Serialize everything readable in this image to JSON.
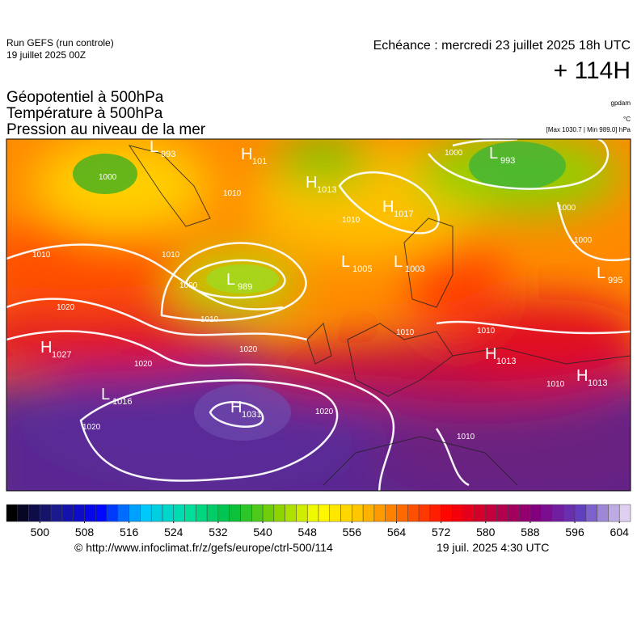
{
  "header": {
    "run": "Run GEFS (run controle)",
    "run_date": "19 juillet 2025 00Z",
    "valid": "Echéance : mercredi 23 juillet 2025 18h UTC",
    "lead": "+ 114H",
    "titles": [
      "Géopotentiel à 500hPa",
      "Température à 500hPa",
      "Pression au niveau de la mer"
    ],
    "units": [
      "gpdam",
      "°C"
    ],
    "extremes": "[Max 1030.7 | Min 989.0] hPa"
  },
  "map": {
    "centers": [
      {
        "type": "L",
        "value": 993
      },
      {
        "type": "H",
        "value": 101
      },
      {
        "type": "H",
        "value": 1013
      },
      {
        "type": "H",
        "value": 1017
      },
      {
        "type": "L",
        "value": 993
      },
      {
        "type": "L",
        "value": 1005
      },
      {
        "type": "L",
        "value": 1003
      },
      {
        "type": "L",
        "value": 989
      },
      {
        "type": "L",
        "value": 995
      },
      {
        "type": "H",
        "value": 1027
      },
      {
        "type": "H",
        "value": 1013
      },
      {
        "type": "H",
        "value": 1013
      },
      {
        "type": "L",
        "value": 1016
      },
      {
        "type": "H",
        "value": 1031
      }
    ],
    "isobar_labels": [
      1000,
      1010,
      1010,
      1000,
      1000,
      1000,
      1010,
      1010,
      1000,
      1010,
      1020,
      1020,
      1020,
      1020,
      1020,
      1010,
      1010,
      1010,
      1010
    ]
  },
  "colorbar": {
    "lim": [
      494,
      606
    ],
    "step": 2,
    "ticks": [
      500,
      508,
      516,
      524,
      532,
      540,
      548,
      556,
      564,
      572,
      580,
      588,
      596,
      604
    ],
    "colors": [
      "#000000",
      "#1a1a8c",
      "#0000ff",
      "#00c8ff",
      "#00e0a0",
      "#00c040",
      "#80d000",
      "#ffff00",
      "#ffc000",
      "#ff6000",
      "#ff0000",
      "#c00040",
      "#800080",
      "#6040c0",
      "#e0d0f0"
    ]
  },
  "footer": {
    "source": "© http://www.infoclimat.fr/z/gefs/europe/ctrl-500/114",
    "issued": "19 juil. 2025  4:30 UTC"
  }
}
